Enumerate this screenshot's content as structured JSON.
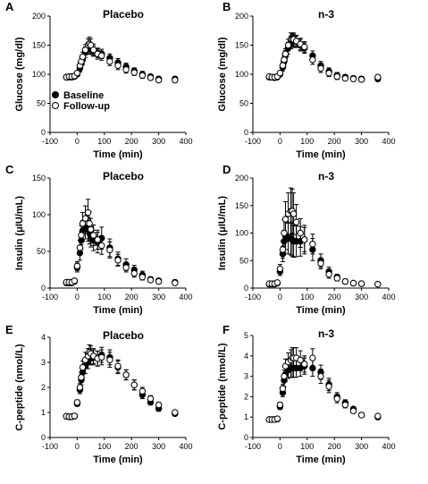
{
  "legend": {
    "baseline_label": "Baseline",
    "followup_label": "Follow-up"
  },
  "chart_data": [
    {
      "panel": "A",
      "title": "Placebo",
      "type": "scatter",
      "xlabel": "Time (min)",
      "ylabel": "Glucose (mg/dl)",
      "xlim": [
        -100,
        400
      ],
      "ylim": [
        0,
        200
      ],
      "xticks": [
        -100,
        0,
        100,
        200,
        300,
        400
      ],
      "yticks": [
        0,
        50,
        100,
        150,
        200
      ],
      "legend_position": "lower-left",
      "series": [
        {
          "name": "Baseline",
          "marker": "filled",
          "x": [
            -40,
            -30,
            -20,
            -10,
            0,
            10,
            15,
            20,
            30,
            40,
            45,
            50,
            60,
            75,
            90,
            120,
            150,
            180,
            210,
            240,
            270,
            300,
            360
          ],
          "y": [
            95,
            95,
            95,
            96,
            100,
            110,
            118,
            125,
            138,
            145,
            145,
            143,
            140,
            137,
            135,
            128,
            120,
            113,
            106,
            100,
            96,
            92,
            92
          ],
          "err": [
            3,
            3,
            3,
            3,
            4,
            6,
            7,
            8,
            9,
            10,
            10,
            9,
            9,
            8,
            8,
            7,
            7,
            6,
            5,
            5,
            4,
            4,
            4
          ]
        },
        {
          "name": "Follow-up",
          "marker": "open",
          "x": [
            -40,
            -30,
            -20,
            -10,
            0,
            10,
            15,
            20,
            30,
            40,
            45,
            50,
            60,
            75,
            90,
            120,
            150,
            180,
            210,
            240,
            270,
            300,
            360
          ],
          "y": [
            95,
            96,
            96,
            97,
            102,
            115,
            122,
            130,
            142,
            150,
            152,
            150,
            142,
            135,
            132,
            122,
            115,
            108,
            103,
            98,
            94,
            90,
            90
          ],
          "err": [
            3,
            3,
            3,
            3,
            4,
            6,
            7,
            8,
            9,
            11,
            12,
            11,
            10,
            9,
            8,
            7,
            7,
            6,
            5,
            5,
            4,
            4,
            4
          ]
        }
      ]
    },
    {
      "panel": "B",
      "title": "n-3",
      "type": "scatter",
      "xlabel": "Time (min)",
      "ylabel": "Glucose (mg/dl)",
      "xlim": [
        -100,
        400
      ],
      "ylim": [
        0,
        200
      ],
      "xticks": [
        -100,
        0,
        100,
        200,
        300,
        400
      ],
      "yticks": [
        0,
        50,
        100,
        150,
        200
      ],
      "series": [
        {
          "name": "Baseline",
          "marker": "filled",
          "x": [
            -40,
            -30,
            -20,
            -10,
            0,
            10,
            15,
            20,
            30,
            40,
            45,
            50,
            60,
            75,
            90,
            120,
            150,
            180,
            210,
            240,
            270,
            300,
            360
          ],
          "y": [
            95,
            95,
            94,
            95,
            100,
            112,
            122,
            132,
            145,
            155,
            157,
            158,
            156,
            150,
            145,
            132,
            115,
            105,
            98,
            95,
            93,
            92,
            92
          ],
          "err": [
            3,
            3,
            3,
            3,
            4,
            7,
            8,
            9,
            10,
            11,
            11,
            11,
            10,
            10,
            9,
            8,
            7,
            6,
            5,
            4,
            4,
            4,
            4
          ]
        },
        {
          "name": "Follow-up",
          "marker": "open",
          "x": [
            -40,
            -30,
            -20,
            -10,
            0,
            10,
            15,
            20,
            30,
            40,
            45,
            50,
            60,
            75,
            90,
            120,
            150,
            180,
            210,
            240,
            270,
            300,
            360
          ],
          "y": [
            96,
            95,
            95,
            96,
            102,
            115,
            125,
            135,
            150,
            160,
            160,
            160,
            157,
            152,
            147,
            125,
            110,
            102,
            96,
            93,
            92,
            91,
            95
          ],
          "err": [
            3,
            3,
            3,
            3,
            4,
            7,
            8,
            9,
            10,
            11,
            11,
            11,
            10,
            10,
            9,
            8,
            7,
            6,
            5,
            4,
            4,
            4,
            4
          ]
        }
      ]
    },
    {
      "panel": "C",
      "title": "Placebo",
      "type": "scatter",
      "xlabel": "Time (min)",
      "ylabel": "Insulin (μIU/mL)",
      "xlim": [
        -100,
        400
      ],
      "ylim": [
        0,
        150
      ],
      "xticks": [
        -100,
        0,
        100,
        200,
        300,
        400
      ],
      "yticks": [
        0,
        50,
        100,
        150
      ],
      "series": [
        {
          "name": "Baseline",
          "marker": "filled",
          "x": [
            -40,
            -30,
            -20,
            -10,
            0,
            10,
            15,
            20,
            30,
            40,
            45,
            50,
            60,
            75,
            90,
            120,
            150,
            180,
            210,
            240,
            270,
            300,
            360
          ],
          "y": [
            7,
            7,
            7,
            9,
            28,
            48,
            65,
            78,
            82,
            80,
            75,
            70,
            65,
            62,
            68,
            55,
            40,
            32,
            25,
            18,
            12,
            10,
            8
          ],
          "err": [
            2,
            2,
            2,
            3,
            6,
            10,
            12,
            14,
            15,
            16,
            15,
            14,
            14,
            14,
            15,
            12,
            9,
            8,
            6,
            5,
            3,
            3,
            3
          ]
        },
        {
          "name": "Follow-up",
          "marker": "open",
          "x": [
            -40,
            -30,
            -20,
            -10,
            0,
            10,
            15,
            20,
            30,
            40,
            45,
            50,
            60,
            75,
            90,
            120,
            150,
            180,
            210,
            240,
            270,
            300,
            360
          ],
          "y": [
            8,
            8,
            8,
            10,
            30,
            55,
            72,
            88,
            95,
            103,
            88,
            80,
            72,
            66,
            58,
            52,
            38,
            28,
            20,
            15,
            11,
            9,
            7
          ],
          "err": [
            2,
            2,
            2,
            3,
            6,
            10,
            13,
            15,
            17,
            18,
            16,
            15,
            14,
            13,
            12,
            11,
            8,
            6,
            5,
            4,
            3,
            3,
            3
          ]
        }
      ]
    },
    {
      "panel": "D",
      "title": "n-3",
      "type": "scatter",
      "xlabel": "Time (min)",
      "ylabel": "Insulin (μIU/mL)",
      "xlim": [
        -100,
        400
      ],
      "ylim": [
        0,
        200
      ],
      "xticks": [
        -100,
        0,
        100,
        200,
        300,
        400
      ],
      "yticks": [
        0,
        50,
        100,
        150,
        200
      ],
      "series": [
        {
          "name": "Baseline",
          "marker": "filled",
          "x": [
            -40,
            -30,
            -20,
            -10,
            0,
            10,
            15,
            20,
            30,
            40,
            45,
            50,
            60,
            75,
            90,
            120,
            150,
            180,
            210,
            240,
            270,
            300,
            360
          ],
          "y": [
            7,
            7,
            7,
            9,
            30,
            62,
            85,
            95,
            90,
            90,
            88,
            85,
            85,
            85,
            88,
            70,
            50,
            30,
            20,
            12,
            9,
            8,
            7
          ],
          "err": [
            2,
            2,
            2,
            3,
            7,
            14,
            20,
            25,
            28,
            30,
            30,
            29,
            28,
            27,
            26,
            20,
            12,
            8,
            5,
            4,
            3,
            3,
            3
          ]
        },
        {
          "name": "Follow-up",
          "marker": "open",
          "x": [
            -40,
            -30,
            -20,
            -10,
            0,
            10,
            15,
            20,
            30,
            40,
            45,
            50,
            60,
            75,
            90,
            120,
            150,
            180,
            210,
            240,
            270,
            300,
            360
          ],
          "y": [
            8,
            8,
            8,
            10,
            35,
            70,
            100,
            125,
            135,
            140,
            140,
            135,
            120,
            100,
            88,
            80,
            45,
            25,
            18,
            12,
            9,
            8,
            7
          ],
          "err": [
            2,
            2,
            2,
            3,
            8,
            16,
            24,
            32,
            38,
            42,
            40,
            38,
            32,
            26,
            22,
            18,
            10,
            7,
            5,
            4,
            3,
            3,
            3
          ]
        }
      ]
    },
    {
      "panel": "E",
      "title": "Placebo",
      "type": "scatter",
      "xlabel": "Time (min)",
      "ylabel": "C-peptide (nmol/L)",
      "xlim": [
        -100,
        400
      ],
      "ylim": [
        0,
        4
      ],
      "xticks": [
        -100,
        0,
        100,
        200,
        300,
        400
      ],
      "yticks": [
        0,
        1,
        2,
        3,
        4
      ],
      "series": [
        {
          "name": "Baseline",
          "marker": "filled",
          "x": [
            -40,
            -30,
            -20,
            -10,
            0,
            10,
            15,
            20,
            30,
            40,
            45,
            50,
            60,
            75,
            90,
            120,
            150,
            180,
            210,
            240,
            270,
            300,
            360
          ],
          "y": [
            0.85,
            0.82,
            0.82,
            0.85,
            1.35,
            1.9,
            2.3,
            2.6,
            2.85,
            3.05,
            3.2,
            3.2,
            3.2,
            3.15,
            3.3,
            3.2,
            2.8,
            2.5,
            2.1,
            1.7,
            1.4,
            1.15,
            0.95
          ],
          "err": [
            0.05,
            0.05,
            0.05,
            0.05,
            0.1,
            0.15,
            0.2,
            0.25,
            0.3,
            0.3,
            0.3,
            0.3,
            0.3,
            0.3,
            0.3,
            0.3,
            0.25,
            0.2,
            0.2,
            0.15,
            0.1,
            0.1,
            0.08
          ]
        },
        {
          "name": "Follow-up",
          "marker": "open",
          "x": [
            -40,
            -30,
            -20,
            -10,
            0,
            10,
            15,
            20,
            30,
            40,
            45,
            50,
            60,
            75,
            90,
            120,
            150,
            180,
            210,
            240,
            270,
            300,
            360
          ],
          "y": [
            0.85,
            0.83,
            0.83,
            0.86,
            1.4,
            2.0,
            2.4,
            2.8,
            3.1,
            3.25,
            3.4,
            3.35,
            3.25,
            3.15,
            3.2,
            3.1,
            2.85,
            2.5,
            2.1,
            1.85,
            1.55,
            1.3,
            1.0
          ],
          "err": [
            0.05,
            0.05,
            0.05,
            0.05,
            0.1,
            0.15,
            0.2,
            0.25,
            0.3,
            0.3,
            0.3,
            0.3,
            0.3,
            0.3,
            0.3,
            0.3,
            0.25,
            0.2,
            0.2,
            0.15,
            0.12,
            0.1,
            0.08
          ]
        }
      ]
    },
    {
      "panel": "F",
      "title": "n-3",
      "type": "scatter",
      "xlabel": "Time (min)",
      "ylabel": "C-peptide (nmol/L)",
      "xlim": [
        -100,
        400
      ],
      "ylim": [
        0,
        5
      ],
      "xticks": [
        -100,
        0,
        100,
        200,
        300,
        400
      ],
      "yticks": [
        0,
        1,
        2,
        3,
        4,
        5
      ],
      "series": [
        {
          "name": "Baseline",
          "marker": "filled",
          "x": [
            -40,
            -30,
            -20,
            -10,
            0,
            10,
            15,
            20,
            30,
            40,
            45,
            50,
            60,
            75,
            90,
            120,
            150,
            180,
            210,
            240,
            270,
            300,
            360
          ],
          "y": [
            0.88,
            0.88,
            0.88,
            0.9,
            1.5,
            2.2,
            2.8,
            3.1,
            3.3,
            3.4,
            3.4,
            3.4,
            3.4,
            3.4,
            3.5,
            3.4,
            3.2,
            2.6,
            2.0,
            1.7,
            1.4,
            1.1,
            1.0
          ],
          "err": [
            0.05,
            0.05,
            0.05,
            0.05,
            0.12,
            0.2,
            0.3,
            0.35,
            0.4,
            0.45,
            0.45,
            0.45,
            0.45,
            0.4,
            0.4,
            0.4,
            0.35,
            0.3,
            0.2,
            0.15,
            0.1,
            0.1,
            0.08
          ]
        },
        {
          "name": "Follow-up",
          "marker": "open",
          "x": [
            -40,
            -30,
            -20,
            -10,
            0,
            10,
            15,
            20,
            30,
            40,
            45,
            50,
            60,
            75,
            90,
            120,
            150,
            180,
            210,
            240,
            270,
            300,
            360
          ],
          "y": [
            0.88,
            0.88,
            0.88,
            0.92,
            1.6,
            2.4,
            3.0,
            3.5,
            3.7,
            3.8,
            3.9,
            3.9,
            3.9,
            3.8,
            3.6,
            3.9,
            3.0,
            2.5,
            1.9,
            1.6,
            1.3,
            1.1,
            1.05
          ],
          "err": [
            0.05,
            0.05,
            0.05,
            0.05,
            0.12,
            0.2,
            0.3,
            0.35,
            0.45,
            0.5,
            0.5,
            0.5,
            0.5,
            0.45,
            0.4,
            0.45,
            0.35,
            0.3,
            0.2,
            0.15,
            0.1,
            0.1,
            0.08
          ]
        }
      ]
    }
  ]
}
